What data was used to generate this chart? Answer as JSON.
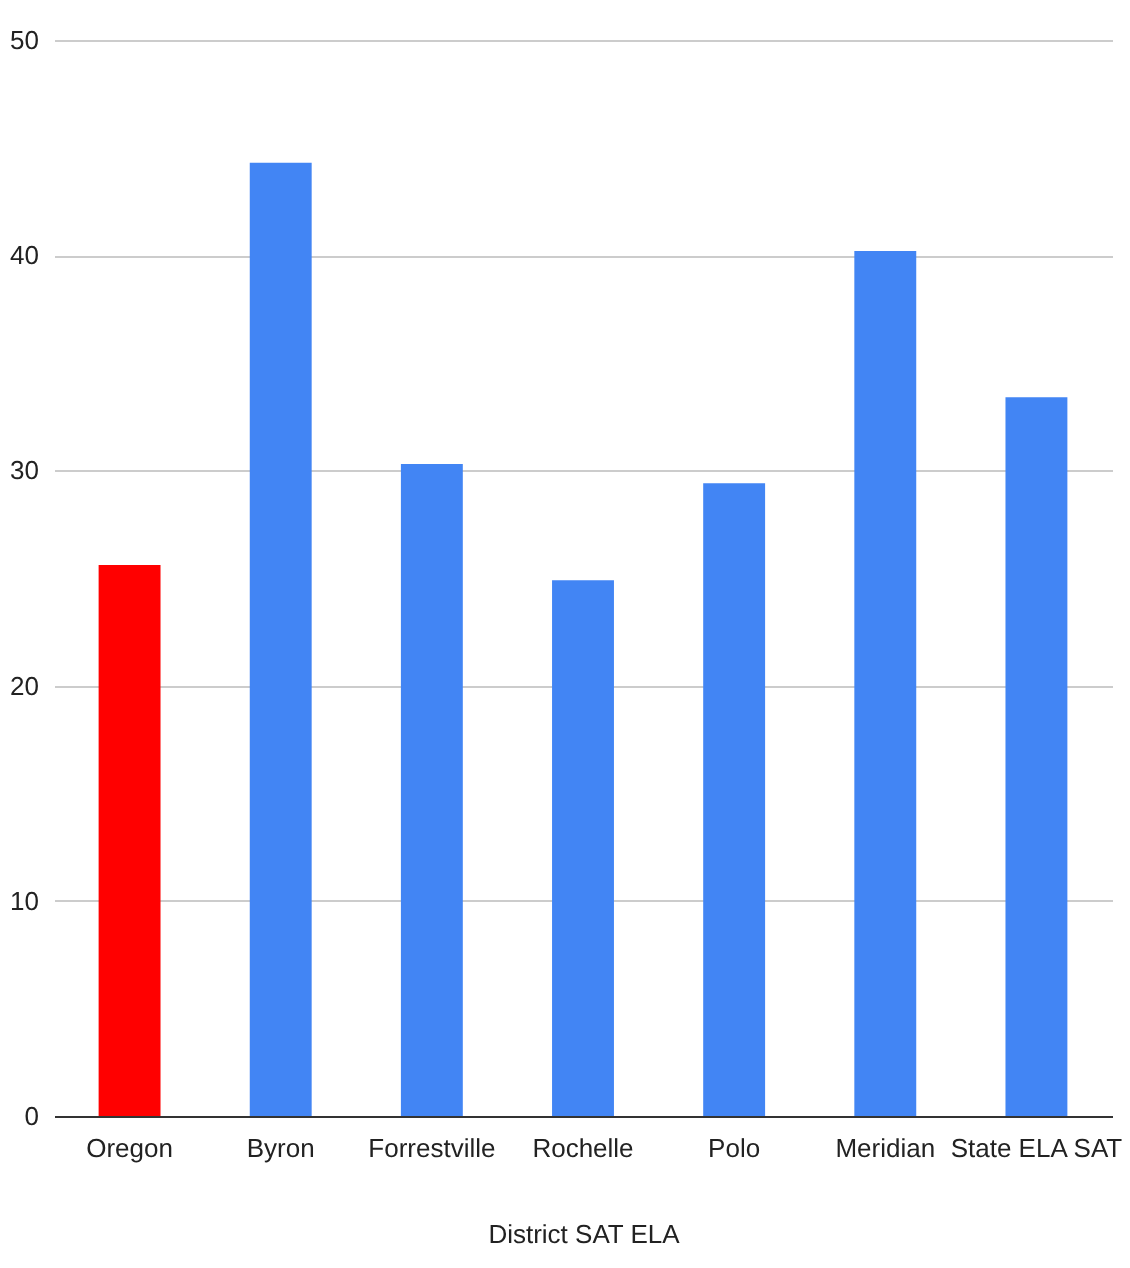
{
  "chart_data": {
    "type": "bar",
    "xlabel": "District SAT ELA",
    "categories": [
      "Oregon",
      "Byron",
      "Forrestville",
      "Rochelle",
      "Polo",
      "Meridian",
      "State ELA SAT"
    ],
    "values": [
      25.6,
      44.3,
      30.3,
      24.9,
      29.4,
      40.2,
      33.4
    ],
    "colors": [
      "#ff0000",
      "#4285f4",
      "#4285f4",
      "#4285f4",
      "#4285f4",
      "#4285f4",
      "#4285f4"
    ],
    "ylim": [
      0,
      50
    ],
    "yticks": [
      0,
      10,
      20,
      30,
      40,
      50
    ],
    "grid": "y",
    "legend": false
  }
}
